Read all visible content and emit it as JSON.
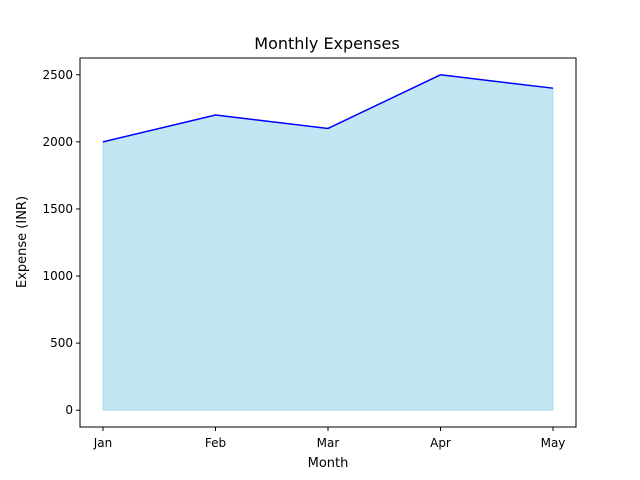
{
  "chart_data": {
    "type": "area",
    "title": "Monthly Expenses",
    "xlabel": "Month",
    "ylabel": "Expense (INR)",
    "categories": [
      "Jan",
      "Feb",
      "Mar",
      "Apr",
      "May"
    ],
    "values": [
      2000,
      2200,
      2100,
      2500,
      2400
    ],
    "ylim": [
      -125,
      2625
    ],
    "yticks": [
      0,
      500,
      1000,
      1500,
      2000,
      2500
    ],
    "grid": false,
    "colors": {
      "line": "#0000ff",
      "fill": "#87ceeb",
      "fill_opacity": 0.5
    }
  }
}
